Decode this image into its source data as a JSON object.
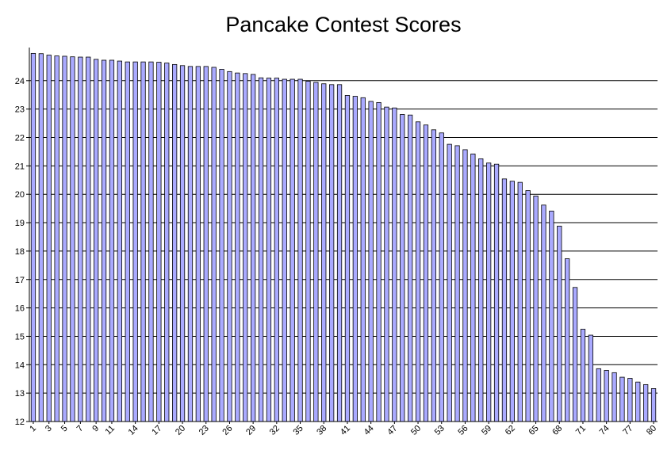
{
  "chart_data": {
    "type": "bar",
    "title": "Pancake Contest Scores",
    "xlabel": "",
    "ylabel": "",
    "ylim": [
      12,
      25
    ],
    "yticks": [
      "12",
      "13",
      "14",
      "15",
      "16",
      "17",
      "18",
      "19",
      "20",
      "21",
      "22",
      "23",
      "24"
    ],
    "grid": true,
    "colors": {
      "bar_fill": "#aaaaff",
      "bar_stroke": "#000000",
      "grid": "#000000"
    },
    "categories": [
      "1",
      "2",
      "3",
      "4",
      "5",
      "6",
      "7",
      "8",
      "9",
      "10",
      "11",
      "12",
      "13",
      "14",
      "15",
      "16",
      "17",
      "18",
      "19",
      "20",
      "21",
      "22",
      "23",
      "24",
      "25",
      "26",
      "27",
      "28",
      "29",
      "30",
      "31",
      "32",
      "33",
      "34",
      "35",
      "36",
      "37",
      "38",
      "39",
      "40",
      "41",
      "42",
      "43",
      "44",
      "45",
      "46",
      "47",
      "48",
      "49",
      "50",
      "51",
      "52",
      "53",
      "54",
      "55",
      "56",
      "57",
      "58",
      "59",
      "60",
      "61",
      "62",
      "63",
      "64",
      "65",
      "66",
      "67",
      "68",
      "69",
      "70",
      "71",
      "72",
      "73",
      "74",
      "75",
      "76",
      "77",
      "78",
      "79",
      "80"
    ],
    "x_tick_labels": [
      "1",
      "3",
      "5",
      "7",
      "9",
      "11",
      "14",
      "17",
      "20",
      "23",
      "26",
      "29",
      "32",
      "35",
      "38",
      "41",
      "44",
      "47",
      "50",
      "53",
      "56",
      "59",
      "62",
      "65",
      "68",
      "71",
      "74",
      "77",
      "80"
    ],
    "values": [
      24.96,
      24.95,
      24.9,
      24.87,
      24.86,
      24.84,
      24.83,
      24.83,
      24.75,
      24.72,
      24.72,
      24.69,
      24.66,
      24.66,
      24.66,
      24.66,
      24.65,
      24.62,
      24.57,
      24.53,
      24.5,
      24.5,
      24.5,
      24.47,
      24.4,
      24.32,
      24.27,
      24.25,
      24.22,
      24.1,
      24.09,
      24.09,
      24.05,
      24.05,
      24.05,
      23.98,
      23.94,
      23.89,
      23.86,
      23.86,
      23.48,
      23.45,
      23.4,
      23.27,
      23.23,
      23.07,
      23.04,
      22.81,
      22.79,
      22.55,
      22.44,
      22.27,
      22.16,
      21.76,
      21.71,
      21.57,
      21.42,
      21.25,
      21.1,
      21.06,
      20.54,
      20.46,
      20.42,
      20.13,
      19.94,
      19.62,
      19.41,
      18.88,
      17.73,
      16.72,
      15.25,
      15.04,
      13.86,
      13.8,
      13.72,
      13.56,
      13.52,
      13.39,
      13.3,
      13.16
    ]
  }
}
